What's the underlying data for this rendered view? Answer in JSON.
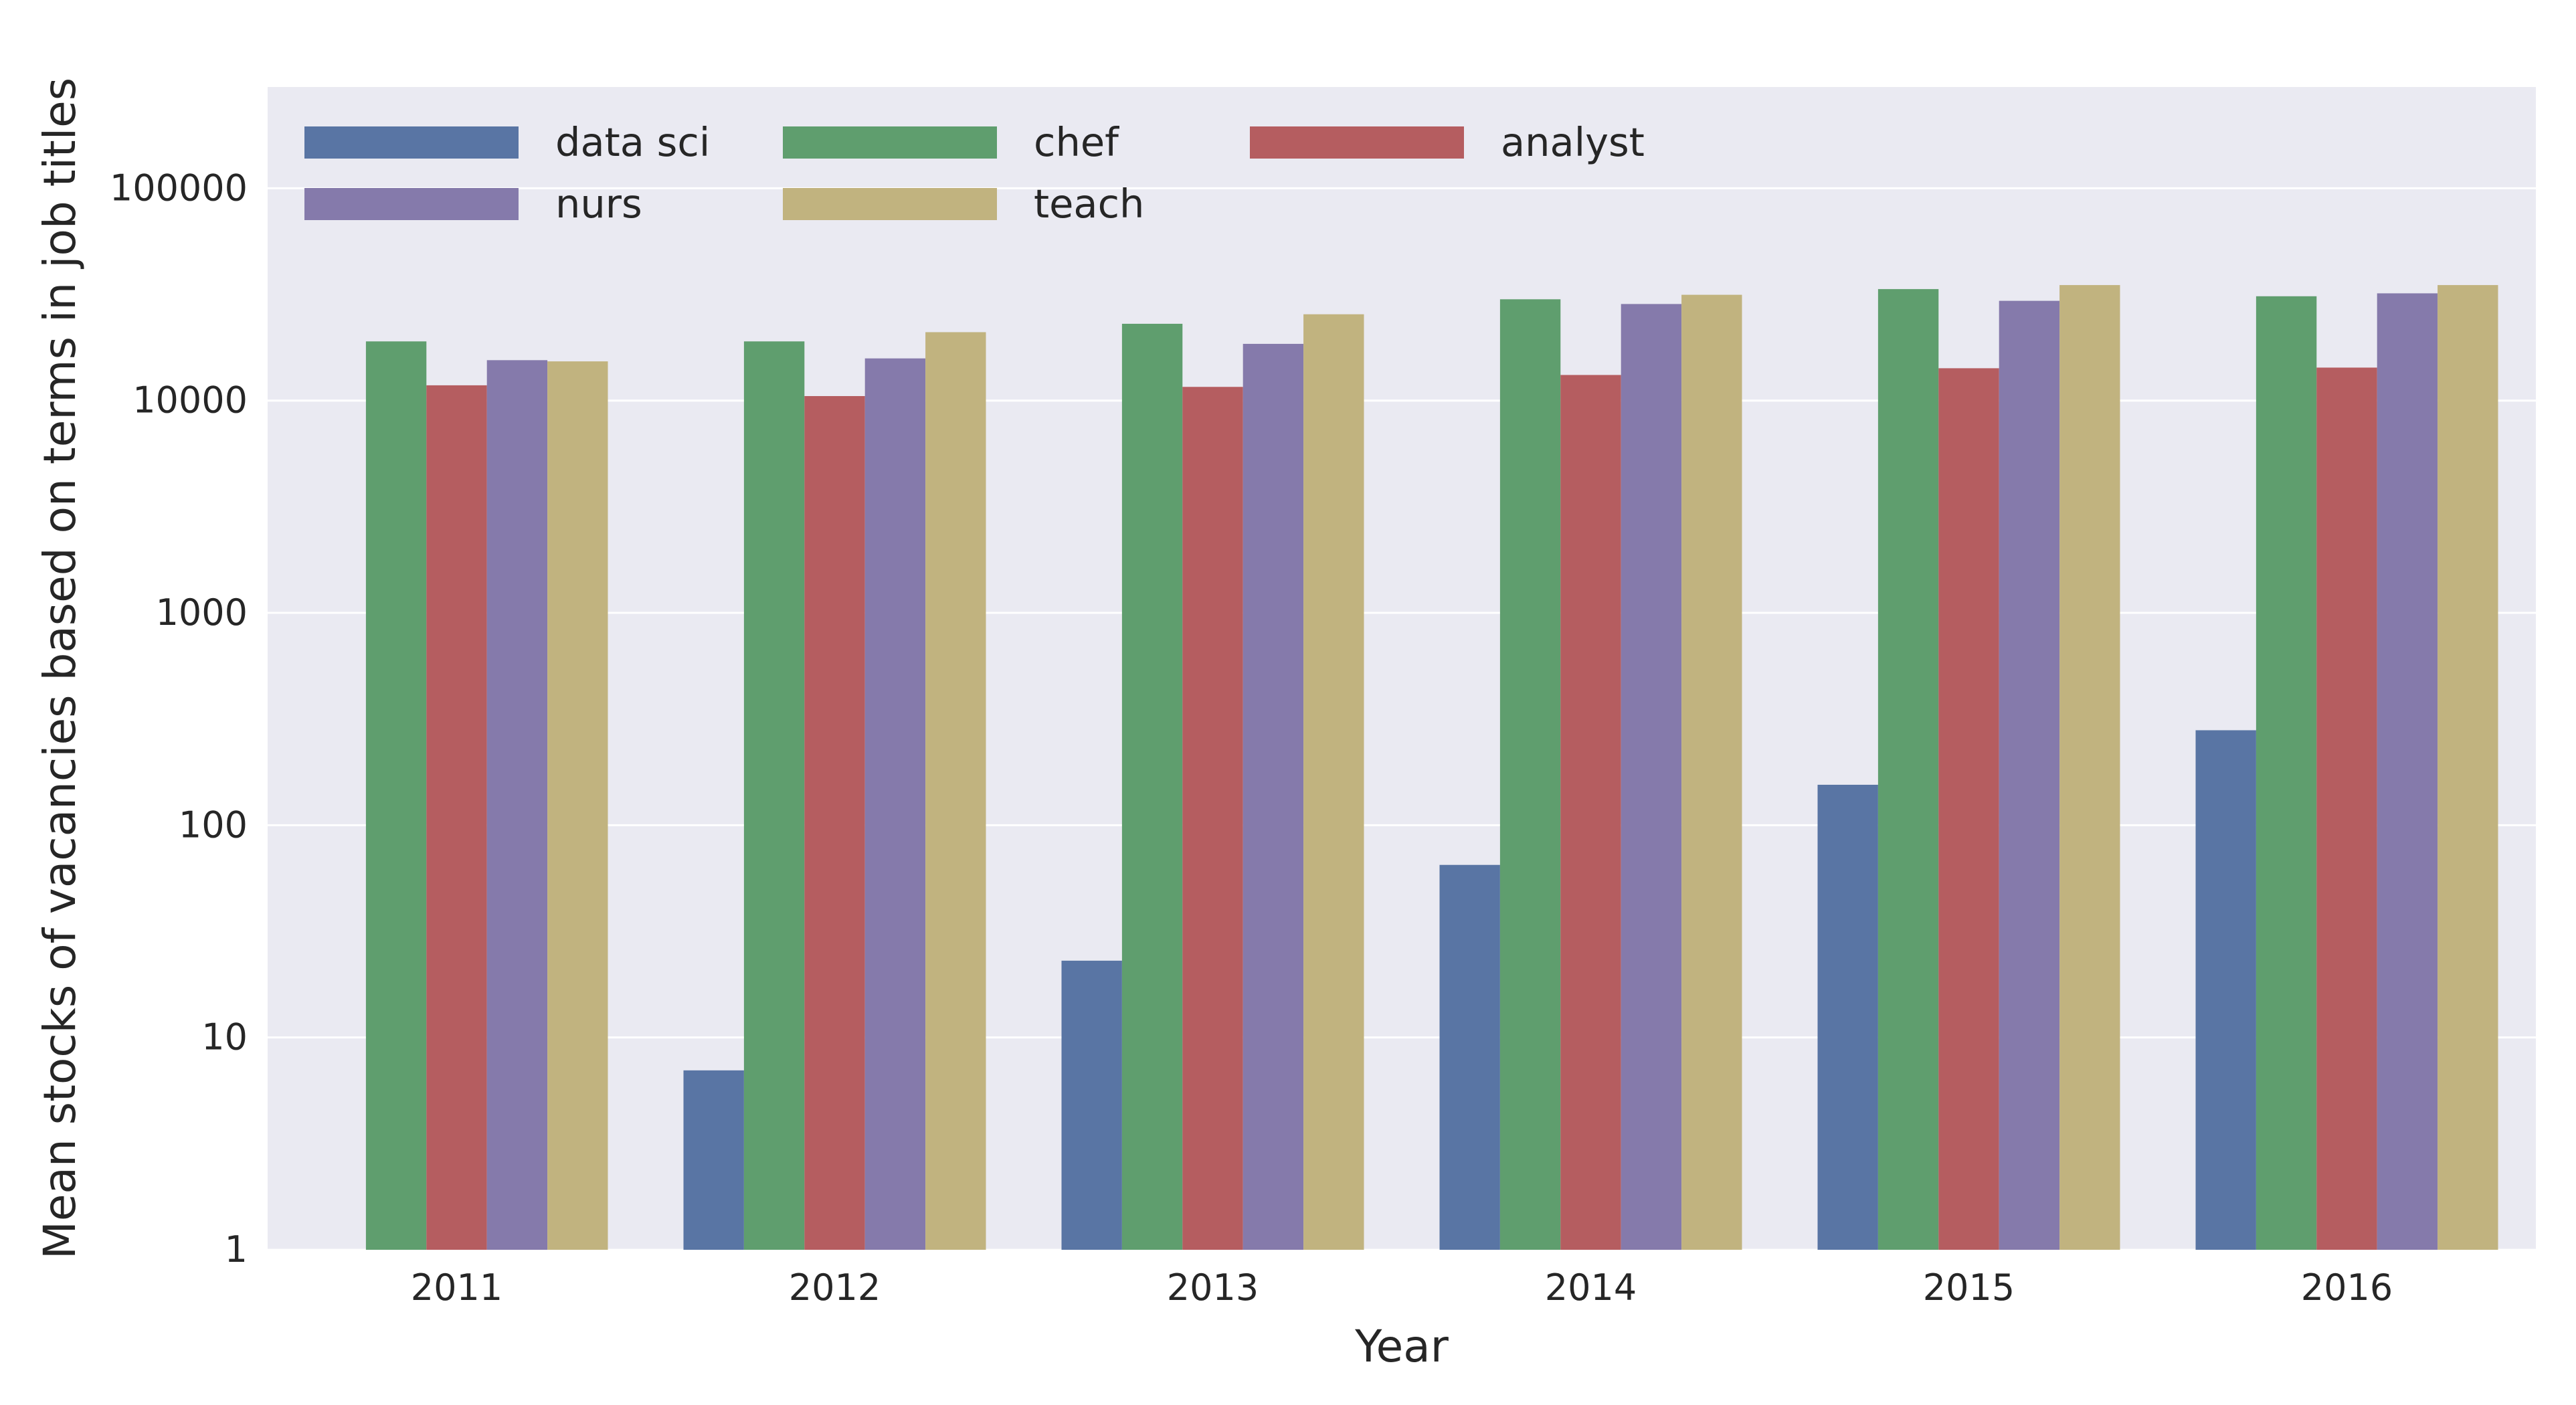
{
  "chart_data": {
    "type": "bar",
    "categories": [
      "2011",
      "2012",
      "2013",
      "2014",
      "2015",
      "2016"
    ],
    "series": [
      {
        "name": "data sci",
        "color": "#5975A4",
        "values": [
          null,
          7,
          23,
          65,
          155,
          280
        ]
      },
      {
        "name": "chef",
        "color": "#5F9E6E",
        "values": [
          19000,
          19000,
          23000,
          30000,
          33500,
          31000
        ]
      },
      {
        "name": "analyst",
        "color": "#B55D60",
        "values": [
          11800,
          10500,
          11600,
          13200,
          14200,
          14300
        ]
      },
      {
        "name": "nurs",
        "color": "#857AAB",
        "values": [
          15500,
          15800,
          18500,
          28500,
          29500,
          32000
        ]
      },
      {
        "name": "teach",
        "color": "#C1B37F",
        "values": [
          15300,
          21000,
          25500,
          31500,
          35000,
          35000
        ]
      }
    ],
    "xlabel": "Year",
    "ylabel": "Mean stocks of vacancies based on terms in job titles",
    "yscale": "log",
    "ylim": [
      1,
      300000
    ],
    "yticks": [
      "1",
      "10",
      "100",
      "1000",
      "10000",
      "100000"
    ],
    "grid": true,
    "legend": {
      "placement": "top-left",
      "columns": 3
    },
    "background": "#EAEAF2"
  }
}
